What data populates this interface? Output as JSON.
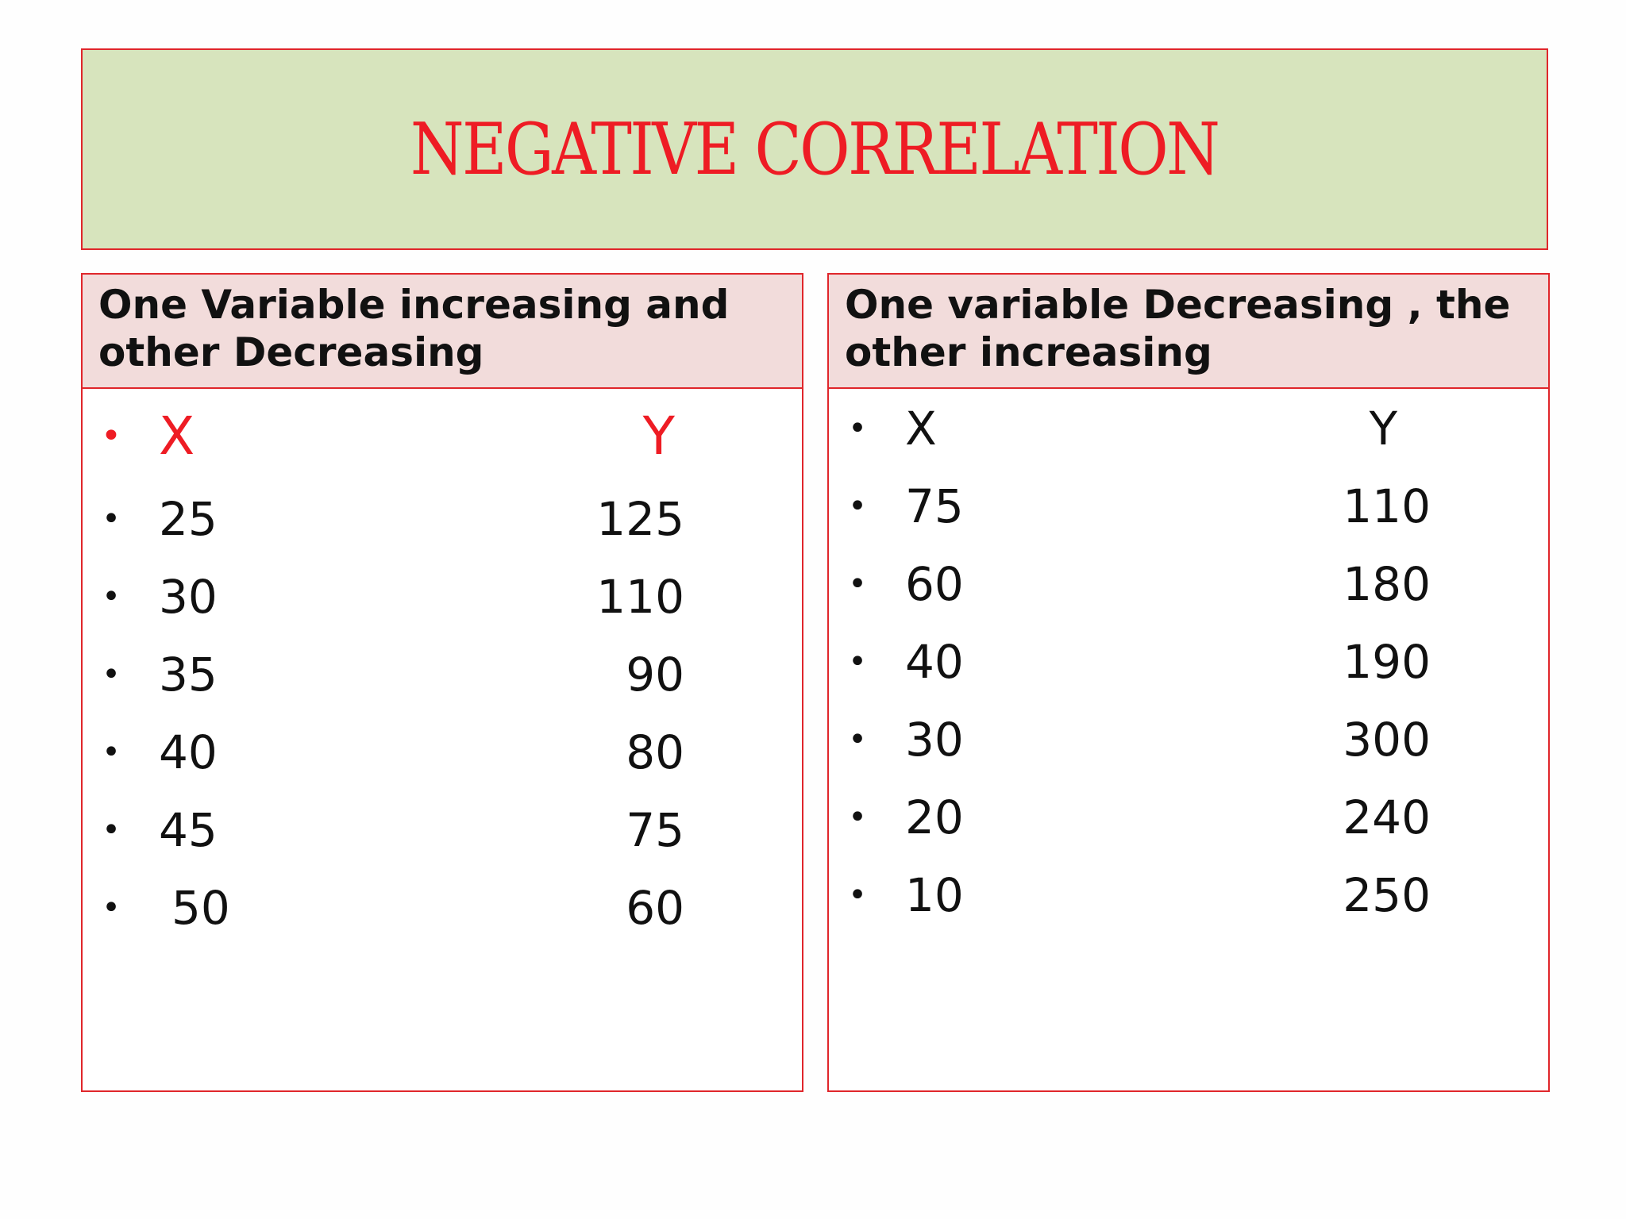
{
  "title": "NEGATIVE CORRELATION",
  "colors": {
    "accent_red": "#ee1c24",
    "title_bg": "#d7e4bd",
    "header_bg": "#f2dcdb"
  },
  "left_panel": {
    "heading_line1": "One Variable increasing and",
    "heading_line2": "other Decreasing",
    "col_x": "X",
    "col_y": "Y",
    "rows": [
      {
        "x": "25",
        "y": "125"
      },
      {
        "x": "30",
        "y": "110"
      },
      {
        "x": "35",
        "y": "90"
      },
      {
        "x": "40",
        "y": "80"
      },
      {
        "x": "45",
        "y": "75"
      },
      {
        "x": "50",
        "y": "60"
      }
    ]
  },
  "right_panel": {
    "heading_line1": "One variable Decreasing , the",
    "heading_line2": "other increasing",
    "col_x": "X",
    "col_y": "Y",
    "rows": [
      {
        "x": "75",
        "y": "110"
      },
      {
        "x": "60",
        "y": "180"
      },
      {
        "x": "40",
        "y": "190"
      },
      {
        "x": "30",
        "y": "300"
      },
      {
        "x": "20",
        "y": "240"
      },
      {
        "x": "10",
        "y": "250"
      }
    ]
  },
  "bullet": "•"
}
